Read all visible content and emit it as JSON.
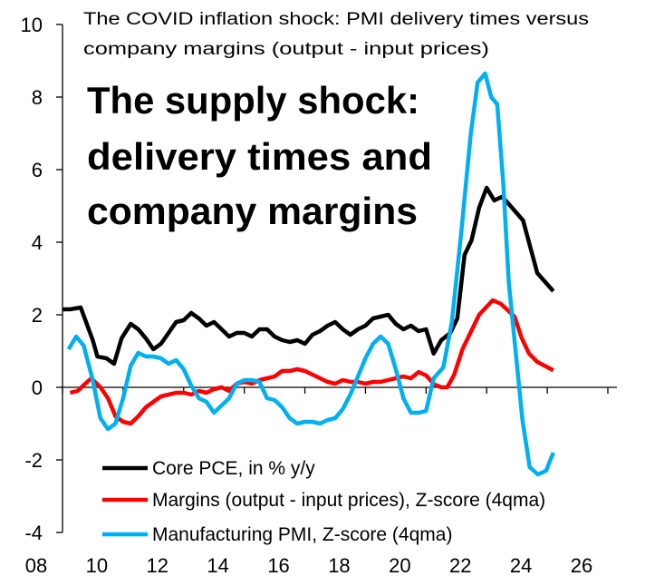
{
  "chart_data": {
    "type": "line",
    "title": "The COVID inflation shock: PMI delivery times versus company margins (output - input prices)",
    "title_lines": [
      "The COVID inflation shock: PMI delivery times versus",
      "company margins (output - input prices)"
    ],
    "annotation_lines": [
      "The supply shock:",
      "delivery times and",
      "company margins"
    ],
    "xlabel": "",
    "ylabel": "",
    "xlim": [
      2008,
      2026
    ],
    "ylim": [
      -4,
      10
    ],
    "x_tick_labels": [
      "08",
      "10",
      "12",
      "14",
      "16",
      "18",
      "20",
      "22",
      "24",
      "26"
    ],
    "y_tick_labels": [
      "-4",
      "-2",
      "0",
      "2",
      "4",
      "6",
      "8",
      "10"
    ],
    "grid": false,
    "legend_placement": "bottom-center",
    "series": [
      {
        "name": "Core PCE, in % y/y",
        "color": "#000000",
        "points": [
          [
            2008.0,
            2.15
          ],
          [
            2008.25,
            2.15
          ],
          [
            2008.6,
            2.2
          ],
          [
            2009.0,
            1.3
          ],
          [
            2009.15,
            0.85
          ],
          [
            2009.45,
            0.8
          ],
          [
            2009.7,
            0.65
          ],
          [
            2009.95,
            1.35
          ],
          [
            2010.25,
            1.75
          ],
          [
            2010.5,
            1.6
          ],
          [
            2010.75,
            1.35
          ],
          [
            2011.0,
            1.05
          ],
          [
            2011.25,
            1.2
          ],
          [
            2011.5,
            1.5
          ],
          [
            2011.75,
            1.8
          ],
          [
            2012.0,
            1.85
          ],
          [
            2012.25,
            2.05
          ],
          [
            2012.5,
            1.9
          ],
          [
            2012.75,
            1.7
          ],
          [
            2013.0,
            1.8
          ],
          [
            2013.25,
            1.6
          ],
          [
            2013.5,
            1.4
          ],
          [
            2013.75,
            1.5
          ],
          [
            2014.0,
            1.5
          ],
          [
            2014.25,
            1.4
          ],
          [
            2014.5,
            1.6
          ],
          [
            2014.75,
            1.6
          ],
          [
            2015.0,
            1.4
          ],
          [
            2015.25,
            1.3
          ],
          [
            2015.5,
            1.25
          ],
          [
            2015.75,
            1.3
          ],
          [
            2016.0,
            1.2
          ],
          [
            2016.25,
            1.45
          ],
          [
            2016.5,
            1.55
          ],
          [
            2016.75,
            1.7
          ],
          [
            2017.0,
            1.8
          ],
          [
            2017.25,
            1.6
          ],
          [
            2017.5,
            1.45
          ],
          [
            2017.75,
            1.6
          ],
          [
            2018.0,
            1.7
          ],
          [
            2018.25,
            1.9
          ],
          [
            2018.5,
            1.95
          ],
          [
            2018.75,
            2.0
          ],
          [
            2019.0,
            1.75
          ],
          [
            2019.25,
            1.6
          ],
          [
            2019.5,
            1.7
          ],
          [
            2019.75,
            1.55
          ],
          [
            2020.0,
            1.6
          ],
          [
            2020.25,
            0.93
          ],
          [
            2020.5,
            1.3
          ],
          [
            2020.8,
            1.5
          ],
          [
            2021.03,
            1.9
          ],
          [
            2021.27,
            3.65
          ],
          [
            2021.5,
            4.05
          ],
          [
            2021.75,
            4.95
          ],
          [
            2022.0,
            5.5
          ],
          [
            2022.25,
            5.15
          ],
          [
            2022.5,
            5.25
          ],
          [
            2022.68,
            5.1
          ],
          [
            2023.2,
            4.6
          ],
          [
            2023.67,
            3.15
          ],
          [
            2024.2,
            2.65
          ]
        ]
      },
      {
        "name": "Margins (output - input prices), Z-score (4qma)",
        "color": "#ff0000",
        "points": [
          [
            2008.25,
            -0.15
          ],
          [
            2008.5,
            -0.1
          ],
          [
            2008.75,
            0.1
          ],
          [
            2008.95,
            0.25
          ],
          [
            2009.25,
            0.0
          ],
          [
            2009.5,
            -0.3
          ],
          [
            2009.75,
            -0.8
          ],
          [
            2010.0,
            -0.95
          ],
          [
            2010.25,
            -1.0
          ],
          [
            2010.5,
            -0.8
          ],
          [
            2010.75,
            -0.55
          ],
          [
            2011.0,
            -0.4
          ],
          [
            2011.25,
            -0.25
          ],
          [
            2011.5,
            -0.2
          ],
          [
            2011.75,
            -0.15
          ],
          [
            2012.0,
            -0.15
          ],
          [
            2012.25,
            -0.2
          ],
          [
            2012.5,
            -0.1
          ],
          [
            2012.75,
            -0.15
          ],
          [
            2013.0,
            -0.05
          ],
          [
            2013.25,
            0.0
          ],
          [
            2013.5,
            -0.1
          ],
          [
            2013.75,
            0.1
          ],
          [
            2014.0,
            0.15
          ],
          [
            2014.25,
            0.1
          ],
          [
            2014.5,
            0.2
          ],
          [
            2014.75,
            0.25
          ],
          [
            2015.0,
            0.3
          ],
          [
            2015.25,
            0.45
          ],
          [
            2015.5,
            0.45
          ],
          [
            2015.75,
            0.5
          ],
          [
            2016.0,
            0.45
          ],
          [
            2016.25,
            0.35
          ],
          [
            2016.5,
            0.25
          ],
          [
            2016.75,
            0.15
          ],
          [
            2017.0,
            0.1
          ],
          [
            2017.25,
            0.2
          ],
          [
            2017.5,
            0.15
          ],
          [
            2017.75,
            0.15
          ],
          [
            2018.0,
            0.1
          ],
          [
            2018.25,
            0.15
          ],
          [
            2018.5,
            0.15
          ],
          [
            2018.75,
            0.2
          ],
          [
            2019.0,
            0.25
          ],
          [
            2019.25,
            0.3
          ],
          [
            2019.5,
            0.25
          ],
          [
            2019.75,
            0.42
          ],
          [
            2020.0,
            0.33
          ],
          [
            2020.27,
            0.08
          ],
          [
            2020.5,
            0.0
          ],
          [
            2020.7,
            0.0
          ],
          [
            2020.93,
            0.35
          ],
          [
            2021.2,
            1.05
          ],
          [
            2021.75,
            2.0
          ],
          [
            2022.2,
            2.4
          ],
          [
            2022.47,
            2.3
          ],
          [
            2022.92,
            1.95
          ],
          [
            2023.15,
            1.37
          ],
          [
            2023.4,
            0.93
          ],
          [
            2023.67,
            0.7
          ],
          [
            2024.2,
            0.47
          ]
        ]
      },
      {
        "name": "Manufacturing PMI, Z-score (4qma)",
        "color": "#00b0f0",
        "points": [
          [
            2008.2,
            1.05
          ],
          [
            2008.45,
            1.4
          ],
          [
            2008.7,
            1.15
          ],
          [
            2009.0,
            0.2
          ],
          [
            2009.25,
            -0.85
          ],
          [
            2009.5,
            -1.15
          ],
          [
            2009.75,
            -1.0
          ],
          [
            2010.0,
            -0.3
          ],
          [
            2010.25,
            0.6
          ],
          [
            2010.5,
            0.95
          ],
          [
            2010.75,
            0.85
          ],
          [
            2011.0,
            0.85
          ],
          [
            2011.25,
            0.8
          ],
          [
            2011.5,
            0.65
          ],
          [
            2011.75,
            0.75
          ],
          [
            2012.0,
            0.5
          ],
          [
            2012.25,
            0.05
          ],
          [
            2012.5,
            -0.3
          ],
          [
            2012.75,
            -0.4
          ],
          [
            2013.0,
            -0.7
          ],
          [
            2013.25,
            -0.5
          ],
          [
            2013.5,
            -0.3
          ],
          [
            2013.75,
            0.1
          ],
          [
            2014.0,
            0.2
          ],
          [
            2014.25,
            0.2
          ],
          [
            2014.5,
            0.15
          ],
          [
            2014.75,
            -0.3
          ],
          [
            2015.0,
            -0.35
          ],
          [
            2015.25,
            -0.55
          ],
          [
            2015.5,
            -0.85
          ],
          [
            2015.75,
            -1.0
          ],
          [
            2016.0,
            -0.95
          ],
          [
            2016.25,
            -0.95
          ],
          [
            2016.5,
            -1.0
          ],
          [
            2016.75,
            -0.9
          ],
          [
            2017.0,
            -0.85
          ],
          [
            2017.25,
            -0.6
          ],
          [
            2017.5,
            -0.2
          ],
          [
            2017.75,
            0.3
          ],
          [
            2018.0,
            0.8
          ],
          [
            2018.25,
            1.2
          ],
          [
            2018.5,
            1.4
          ],
          [
            2018.75,
            1.2
          ],
          [
            2019.0,
            0.5
          ],
          [
            2019.25,
            -0.3
          ],
          [
            2019.5,
            -0.7
          ],
          [
            2019.78,
            -0.7
          ],
          [
            2020.0,
            -0.65
          ],
          [
            2020.25,
            0.25
          ],
          [
            2020.57,
            0.55
          ],
          [
            2020.85,
            1.8
          ],
          [
            2021.17,
            4.35
          ],
          [
            2021.47,
            6.95
          ],
          [
            2021.7,
            8.4
          ],
          [
            2021.95,
            8.65
          ],
          [
            2022.15,
            8.0
          ],
          [
            2022.35,
            7.8
          ],
          [
            2022.55,
            5.6
          ],
          [
            2022.73,
            2.9
          ],
          [
            2023.18,
            -0.9
          ],
          [
            2023.42,
            -2.2
          ],
          [
            2023.69,
            -2.4
          ],
          [
            2023.96,
            -2.3
          ],
          [
            2024.2,
            -1.8
          ]
        ]
      }
    ]
  }
}
